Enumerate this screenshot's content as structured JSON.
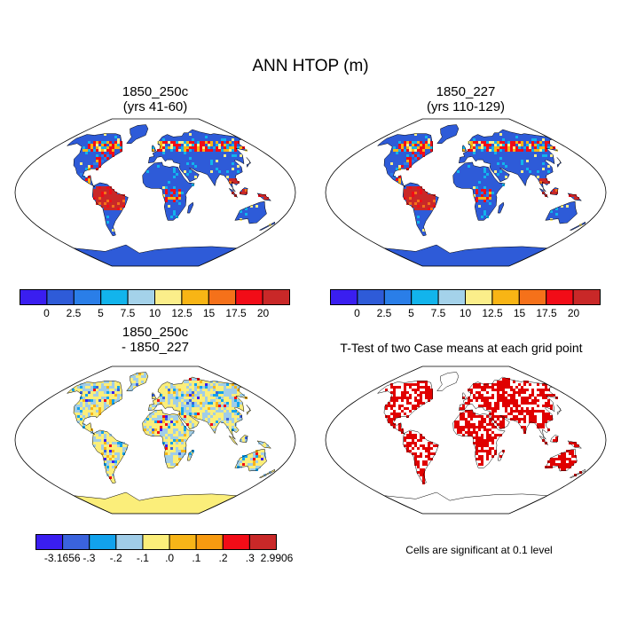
{
  "main_title": "ANN HTOP (m)",
  "panels": {
    "tl": {
      "line1": "1850_250c",
      "line2": "(yrs 41-60)"
    },
    "tr": {
      "line1": "1850_227",
      "line2": "(yrs 110-129)"
    },
    "bl": {
      "line1": "1850_250c",
      "line2": "- 1850_227"
    },
    "br": {
      "line1": "T-Test of two Case means at each grid point"
    }
  },
  "colorbar_top": {
    "labels": [
      "0",
      "2.5",
      "5",
      "7.5",
      "10",
      "12.5",
      "15",
      "17.5",
      "20"
    ],
    "colors": [
      "#3a1ef0",
      "#2e5bd8",
      "#2a7ee8",
      "#12b4ec",
      "#a4d2ea",
      "#fbee8a",
      "#f8b515",
      "#f5711a",
      "#f20c17",
      "#c92828"
    ]
  },
  "colorbar_bottom": {
    "labels": [
      "-3.1656",
      "-.3",
      "-.2",
      "-.1",
      ".0",
      ".1",
      ".2",
      ".3",
      "2.9906"
    ],
    "colors": [
      "#3a1ef0",
      "#3a63dd",
      "#12a2ec",
      "#a0cde8",
      "#fbee7a",
      "#f7b518",
      "#f79a10",
      "#f20c17",
      "#c92828"
    ]
  },
  "significance_note": "Cells are significant at 0.1 level",
  "map_colors": {
    "ocean": "#ffffff",
    "land_base_top": "#2e5bd8",
    "land_base_diff": "#fbee7a",
    "sig": "#e00000"
  },
  "chart_data": {
    "type": "map",
    "variable": "ANN HTOP",
    "units": "m",
    "projection": "Robinson",
    "panels": [
      {
        "case": "1850_250c",
        "years": "yrs 41-60",
        "contour_min": 0,
        "contour_max": 20,
        "contour_interval": 2.5
      },
      {
        "case": "1850_227",
        "years": "yrs 110-129",
        "contour_min": 0,
        "contour_max": 20,
        "contour_interval": 2.5
      },
      {
        "case": "1850_250c - 1850_227",
        "data_min": -3.1656,
        "data_max": 2.9906,
        "levels": [
          -0.3,
          -0.2,
          -0.1,
          0.0,
          0.1,
          0.2,
          0.3
        ]
      },
      {
        "case": "T-Test of two Case means at each grid point",
        "significance_level": 0.1
      }
    ]
  }
}
